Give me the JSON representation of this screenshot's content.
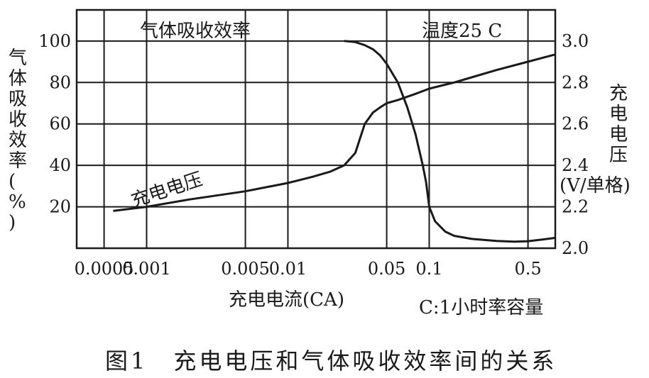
{
  "caption": "图1　充电电压和气体吸收效率间的关系",
  "chart_data": {
    "type": "line",
    "plot_title": "气体吸收效率",
    "condition": "温度25 C",
    "xlabel": "充电电流(CA)",
    "x_note": "C:1小时率容量",
    "x_scale": "log",
    "xlim": [
      0.00032,
      0.78
    ],
    "x_ticks": [
      {
        "label": "0.0005",
        "value": 0.0005
      },
      {
        "label": "0.001",
        "value": 0.001
      },
      {
        "label": "0.005",
        "value": 0.005
      },
      {
        "label": "0.01",
        "value": 0.01
      },
      {
        "label": "0.05",
        "value": 0.05
      },
      {
        "label": "0.1",
        "value": 0.1
      },
      {
        "label": "0.5",
        "value": 0.5
      }
    ],
    "y_left": {
      "label": "气体吸收效率(%)",
      "ylim": [
        0,
        115
      ],
      "ticks": [
        "20",
        "40",
        "60",
        "80",
        "100"
      ],
      "tick_values": [
        20,
        40,
        60,
        80,
        100
      ]
    },
    "y_right": {
      "label": "充电电压",
      "unit": "(V/单格)",
      "ylim": [
        2.0,
        3.0
      ],
      "ticks": [
        "2.0",
        "2.2",
        "2.4",
        "2.6",
        "2.8",
        "3.0"
      ],
      "tick_values": [
        2.0,
        2.2,
        2.4,
        2.6,
        2.8,
        3.0
      ]
    },
    "grid": true,
    "series": [
      {
        "name": "",
        "axis": "left",
        "color": "#1a1a1a",
        "x": [
          0.025,
          0.03,
          0.035,
          0.04,
          0.045,
          0.05,
          0.06,
          0.07,
          0.08,
          0.09,
          0.095,
          0.1,
          0.11,
          0.13,
          0.15,
          0.2,
          0.3,
          0.4,
          0.5,
          0.6,
          0.78
        ],
        "y": [
          100,
          99.5,
          98,
          96,
          93,
          89,
          80,
          68,
          55,
          40,
          32,
          20,
          13,
          8,
          6,
          4.5,
          3.5,
          3.2,
          3.4,
          4,
          5
        ]
      },
      {
        "name": "充电电压",
        "axis": "right",
        "color": "#1a1a1a",
        "x": [
          0.00058,
          0.001,
          0.002,
          0.005,
          0.01,
          0.015,
          0.02,
          0.025,
          0.03,
          0.035,
          0.04,
          0.045,
          0.05,
          0.06,
          0.08,
          0.1,
          0.15,
          0.2,
          0.3,
          0.5,
          0.78
        ],
        "y": [
          2.18,
          2.2,
          2.235,
          2.275,
          2.315,
          2.345,
          2.37,
          2.4,
          2.46,
          2.6,
          2.655,
          2.68,
          2.7,
          2.715,
          2.745,
          2.77,
          2.8,
          2.825,
          2.86,
          2.9,
          2.935
        ]
      }
    ]
  }
}
